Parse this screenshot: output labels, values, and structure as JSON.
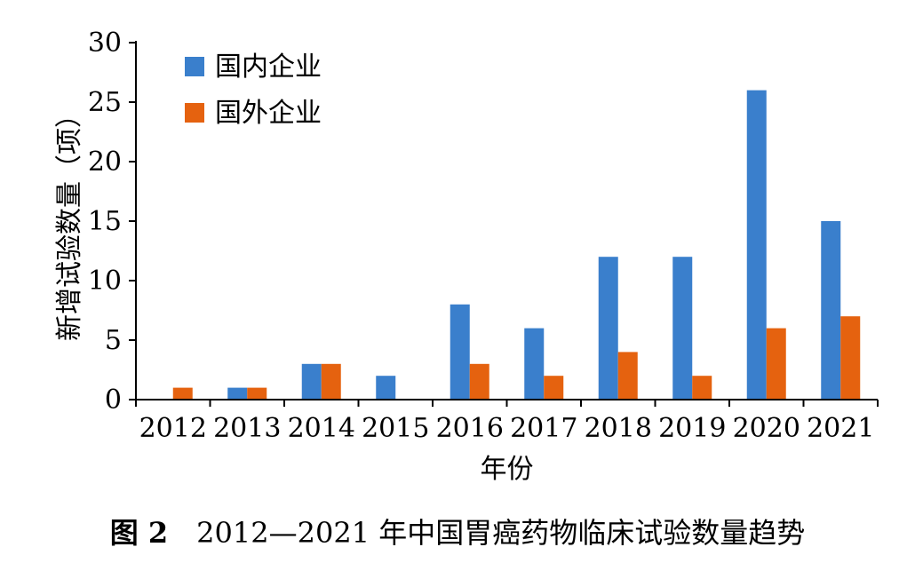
{
  "chart_data": {
    "type": "bar",
    "categories": [
      "2012",
      "2013",
      "2014",
      "2015",
      "2016",
      "2017",
      "2018",
      "2019",
      "2020",
      "2021"
    ],
    "series": [
      {
        "name": "国内企业",
        "color": "#3a7fcc",
        "values": [
          0,
          1,
          3,
          2,
          8,
          6,
          12,
          12,
          26,
          15
        ]
      },
      {
        "name": "国外企业",
        "color": "#e5620f",
        "values": [
          1,
          1,
          3,
          0,
          3,
          2,
          4,
          2,
          6,
          7
        ]
      }
    ],
    "xlabel": "年份",
    "ylabel": "新增试验数量（项）",
    "ylim": [
      0,
      30
    ],
    "yticks": [
      0,
      5,
      10,
      15,
      20,
      25,
      30
    ],
    "grid": false,
    "legend": "top-left"
  },
  "caption": {
    "label": "图 2",
    "text": "2012—2021 年中国胃癌药物临床试验数量趋势"
  }
}
